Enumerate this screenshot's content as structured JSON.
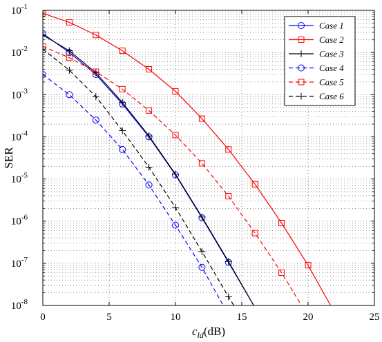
{
  "chart_data": {
    "type": "line",
    "xlabel_main": "c",
    "xlabel_sub": "ld",
    "xlabel_unit": "(dB)",
    "ylabel": "SER",
    "xlim": [
      0,
      25
    ],
    "ylim": [
      1e-08,
      0.1
    ],
    "yscale": "log",
    "grid": true,
    "legend_placement": "top-right",
    "x_ticks": [
      0,
      5,
      10,
      15,
      20,
      25
    ],
    "y_ticks": [
      {
        "base": "10",
        "exp": "-1",
        "value": 0.1
      },
      {
        "base": "10",
        "exp": "-2",
        "value": 0.01
      },
      {
        "base": "10",
        "exp": "-3",
        "value": 0.001
      },
      {
        "base": "10",
        "exp": "-4",
        "value": 0.0001
      },
      {
        "base": "10",
        "exp": "-5",
        "value": 1e-05
      },
      {
        "base": "10",
        "exp": "-6",
        "value": 1e-06
      },
      {
        "base": "10",
        "exp": "-7",
        "value": 1e-07
      },
      {
        "base": "10",
        "exp": "-8",
        "value": 1e-08
      }
    ],
    "series": [
      {
        "name": "Case 1",
        "color": "#0000ff",
        "dash": "solid",
        "marker": "circle",
        "x": [
          0,
          2,
          4,
          6,
          8,
          10,
          12,
          14,
          15.9
        ],
        "y": [
          0.028,
          0.01,
          0.003,
          0.0006,
          0.0001,
          1.25e-05,
          1.2e-06,
          1.05e-07,
          1e-08
        ],
        "marker_x": [
          0,
          2,
          4,
          6,
          8,
          10,
          12,
          14
        ]
      },
      {
        "name": "Case 2",
        "color": "#ff0000",
        "dash": "solid",
        "marker": "square",
        "x": [
          0,
          2,
          4,
          6,
          8,
          10,
          12,
          14,
          16,
          18,
          20,
          21.7
        ],
        "y": [
          0.085,
          0.052,
          0.026,
          0.011,
          0.004,
          0.0012,
          0.00027,
          5e-05,
          7.5e-06,
          9e-07,
          9e-08,
          1e-08
        ],
        "marker_x": [
          0,
          2,
          4,
          6,
          8,
          10,
          12,
          14,
          16,
          18,
          20
        ]
      },
      {
        "name": "Case 3",
        "color": "#000000",
        "dash": "solid",
        "marker": "plus",
        "x": [
          0,
          2,
          4,
          6,
          8,
          10,
          12,
          14,
          15.9
        ],
        "y": [
          0.026,
          0.011,
          0.0033,
          0.00065,
          0.000105,
          1.3e-05,
          1.25e-06,
          1.1e-07,
          1e-08
        ],
        "marker_x": [
          0,
          2,
          4,
          6,
          8,
          10,
          12,
          14
        ]
      },
      {
        "name": "Case 4",
        "color": "#0000ff",
        "dash": "dashed",
        "marker": "circle",
        "x": [
          0,
          2,
          4,
          6,
          8,
          10,
          12,
          13.6
        ],
        "y": [
          0.003,
          0.001,
          0.00025,
          5e-05,
          7.2e-06,
          8e-07,
          8e-08,
          1e-08
        ],
        "marker_x": [
          0,
          2,
          4,
          6,
          8,
          10,
          12
        ]
      },
      {
        "name": "Case 5",
        "color": "#ff0000",
        "dash": "dashed",
        "marker": "square",
        "x": [
          0,
          2,
          4,
          6,
          8,
          10,
          12,
          14,
          16,
          18,
          19.5
        ],
        "y": [
          0.014,
          0.0075,
          0.0035,
          0.00135,
          0.00042,
          0.00011,
          2.35e-05,
          3.9e-06,
          5.2e-07,
          6e-08,
          1e-08
        ],
        "marker_x": [
          0,
          2,
          4,
          6,
          8,
          10,
          12,
          14,
          16,
          18
        ]
      },
      {
        "name": "Case 6",
        "color": "#000000",
        "dash": "dashed",
        "marker": "plus",
        "x": [
          0,
          2,
          4,
          6,
          8,
          10,
          12,
          14,
          14.4
        ],
        "y": [
          0.012,
          0.0038,
          0.0009,
          0.00014,
          1.9e-05,
          2.1e-06,
          1.9e-07,
          1.6e-08,
          1e-08
        ],
        "marker_x": [
          0,
          2,
          4,
          6,
          8,
          10,
          12,
          14
        ]
      }
    ]
  }
}
